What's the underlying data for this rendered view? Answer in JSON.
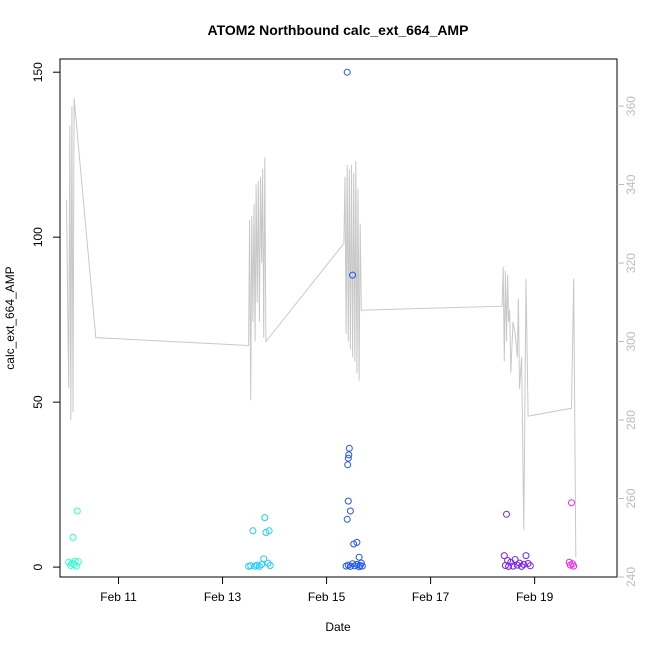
{
  "chart_data": {
    "type": "scatter",
    "title": "ATOM2 Northbound calc_ext_664_AMP",
    "xlabel": "Date",
    "ylabel": "calc_ext_664_AMP",
    "xlim": [
      "2023-02-09T21:00",
      "2023-02-20T14:00"
    ],
    "ylim": [
      -3,
      154
    ],
    "xticks": [
      {
        "label": "Feb 11",
        "date": "2023-02-11T00:00"
      },
      {
        "label": "Feb 13",
        "date": "2023-02-13T00:00"
      },
      {
        "label": "Feb 15",
        "date": "2023-02-15T00:00"
      },
      {
        "label": "Feb 17",
        "date": "2023-02-17T00:00"
      },
      {
        "label": "Feb 19",
        "date": "2023-02-19T00:00"
      }
    ],
    "yticks": [
      0,
      50,
      100,
      150
    ],
    "y2lim": [
      240,
      372
    ],
    "y2ticks": [
      240,
      260,
      280,
      300,
      320,
      340,
      360
    ],
    "series": [
      {
        "color": "#33ffcc",
        "points": [
          [
            "2023-02-10T01:00",
            1.5
          ],
          [
            "2023-02-10T02:00",
            0.5
          ],
          [
            "2023-02-10T02:30",
            1.2
          ],
          [
            "2023-02-10T03:00",
            9
          ],
          [
            "2023-02-10T03:30",
            0.8
          ],
          [
            "2023-02-10T04:00",
            1.8
          ],
          [
            "2023-02-10T04:30",
            0.3
          ],
          [
            "2023-02-10T05:00",
            17
          ],
          [
            "2023-02-10T05:30",
            1.6
          ]
        ]
      },
      {
        "color": "#22ccff",
        "points": [
          [
            "2023-02-13T12:00",
            0.2
          ],
          [
            "2023-02-13T13:00",
            0.4
          ],
          [
            "2023-02-13T14:00",
            11
          ],
          [
            "2023-02-13T15:00",
            0.3
          ],
          [
            "2023-02-13T16:00",
            0.6
          ],
          [
            "2023-02-13T17:00",
            0.2
          ],
          [
            "2023-02-13T18:00",
            0.8
          ],
          [
            "2023-02-13T19:00",
            2.5
          ],
          [
            "2023-02-13T19:30",
            15
          ],
          [
            "2023-02-13T20:00",
            10.5
          ],
          [
            "2023-02-13T21:00",
            1.2
          ],
          [
            "2023-02-13T21:30",
            11
          ],
          [
            "2023-02-13T22:00",
            0.5
          ]
        ]
      },
      {
        "color": "#2255ee",
        "points": [
          [
            "2023-02-15T09:30",
            150
          ],
          [
            "2023-02-15T09:45",
            31
          ],
          [
            "2023-02-15T10:00",
            33
          ],
          [
            "2023-02-15T10:15",
            34
          ],
          [
            "2023-02-15T10:30",
            36
          ],
          [
            "2023-02-15T10:00",
            20
          ],
          [
            "2023-02-15T09:30",
            14.5
          ],
          [
            "2023-02-15T11:00",
            17
          ],
          [
            "2023-02-15T12:00",
            88.5
          ],
          [
            "2023-02-15T12:30",
            7
          ],
          [
            "2023-02-15T14:00",
            7.5
          ],
          [
            "2023-02-15T15:00",
            3
          ],
          [
            "2023-02-15T09:00",
            0.3
          ],
          [
            "2023-02-15T10:00",
            0.6
          ],
          [
            "2023-02-15T11:00",
            0.2
          ],
          [
            "2023-02-15T12:00",
            1.0
          ],
          [
            "2023-02-15T13:00",
            0.4
          ],
          [
            "2023-02-15T14:00",
            0.8
          ],
          [
            "2023-02-15T15:00",
            0.1
          ],
          [
            "2023-02-15T15:30",
            0.5
          ],
          [
            "2023-02-15T16:00",
            1.2
          ],
          [
            "2023-02-15T16:30",
            0.3
          ]
        ]
      },
      {
        "color": "#7722ee",
        "points": [
          [
            "2023-02-18T10:00",
            3.5
          ],
          [
            "2023-02-18T11:00",
            16
          ],
          [
            "2023-02-18T10:30",
            0.5
          ],
          [
            "2023-02-18T11:30",
            2
          ],
          [
            "2023-02-18T12:00",
            0.2
          ],
          [
            "2023-02-18T13:00",
            1.5
          ],
          [
            "2023-02-18T14:00",
            0.3
          ],
          [
            "2023-02-18T15:00",
            2.3
          ],
          [
            "2023-02-18T16:00",
            0.6
          ],
          [
            "2023-02-18T17:00",
            1.2
          ],
          [
            "2023-02-18T18:00",
            0.2
          ],
          [
            "2023-02-18T19:00",
            0.8
          ],
          [
            "2023-02-18T20:00",
            3.5
          ],
          [
            "2023-02-18T21:00",
            1.1
          ],
          [
            "2023-02-18T22:00",
            0.4
          ]
        ]
      },
      {
        "color": "#ee22ee",
        "points": [
          [
            "2023-02-19T17:00",
            19.5
          ],
          [
            "2023-02-19T16:00",
            1.5
          ],
          [
            "2023-02-19T16:30",
            0.6
          ],
          [
            "2023-02-19T17:30",
            1.0
          ],
          [
            "2023-02-19T18:00",
            0.3
          ]
        ]
      }
    ],
    "secondary_line": {
      "color": "#c8c8c8",
      "points": [
        [
          "2023-02-10T00:00",
          336
        ],
        [
          "2023-02-10T01:00",
          288
        ],
        [
          "2023-02-10T01:30",
          355
        ],
        [
          "2023-02-10T02:00",
          280
        ],
        [
          "2023-02-10T02:30",
          360
        ],
        [
          "2023-02-10T03:00",
          282
        ],
        [
          "2023-02-10T03:30",
          362
        ],
        [
          "2023-02-10T13:30",
          301
        ],
        [
          "2023-02-13T12:00",
          299
        ],
        [
          "2023-02-13T12:30",
          331
        ],
        [
          "2023-02-13T13:00",
          285
        ],
        [
          "2023-02-13T13:30",
          332
        ],
        [
          "2023-02-13T14:00",
          305
        ],
        [
          "2023-02-13T14:30",
          335
        ],
        [
          "2023-02-13T15:00",
          300
        ],
        [
          "2023-02-13T15:30",
          340
        ],
        [
          "2023-02-13T16:00",
          310
        ],
        [
          "2023-02-13T16:30",
          341
        ],
        [
          "2023-02-13T17:00",
          305
        ],
        [
          "2023-02-13T17:30",
          342
        ],
        [
          "2023-02-13T18:00",
          320
        ],
        [
          "2023-02-13T18:30",
          344
        ],
        [
          "2023-02-13T19:00",
          301
        ],
        [
          "2023-02-13T19:30",
          347
        ],
        [
          "2023-02-13T20:00",
          300
        ],
        [
          "2023-02-15T08:00",
          325
        ],
        [
          "2023-02-15T08:30",
          342
        ],
        [
          "2023-02-15T09:00",
          302
        ],
        [
          "2023-02-15T09:30",
          345
        ],
        [
          "2023-02-15T10:00",
          300
        ],
        [
          "2023-02-15T10:30",
          344
        ],
        [
          "2023-02-15T11:00",
          298
        ],
        [
          "2023-02-15T11:30",
          345
        ],
        [
          "2023-02-15T12:00",
          296
        ],
        [
          "2023-02-15T12:30",
          343
        ],
        [
          "2023-02-15T13:00",
          295
        ],
        [
          "2023-02-15T13:30",
          346
        ],
        [
          "2023-02-15T14:00",
          292
        ],
        [
          "2023-02-15T14:30",
          339
        ],
        [
          "2023-02-15T15:00",
          290
        ],
        [
          "2023-02-15T15:30",
          330
        ],
        [
          "2023-02-15T16:00",
          308
        ],
        [
          "2023-02-18T09:00",
          309
        ],
        [
          "2023-02-18T09:30",
          319
        ],
        [
          "2023-02-18T10:00",
          295
        ],
        [
          "2023-02-18T10:30",
          318
        ],
        [
          "2023-02-18T11:00",
          300
        ],
        [
          "2023-02-18T11:30",
          317
        ],
        [
          "2023-02-18T12:00",
          305
        ],
        [
          "2023-02-18T12:30",
          308
        ],
        [
          "2023-02-18T13:00",
          292
        ],
        [
          "2023-02-18T14:00",
          305
        ],
        [
          "2023-02-18T15:00",
          302
        ],
        [
          "2023-02-18T16:00",
          296
        ],
        [
          "2023-02-18T16:30",
          311
        ],
        [
          "2023-02-18T17:00",
          288
        ],
        [
          "2023-02-18T18:00",
          296
        ],
        [
          "2023-02-18T19:00",
          252
        ],
        [
          "2023-02-18T20:00",
          316
        ],
        [
          "2023-02-18T21:00",
          281
        ],
        [
          "2023-02-19T17:00",
          283
        ],
        [
          "2023-02-19T18:00",
          316
        ],
        [
          "2023-02-19T19:00",
          245
        ]
      ]
    }
  }
}
